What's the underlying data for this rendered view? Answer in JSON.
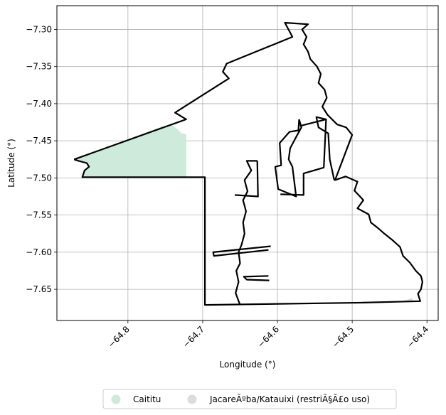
{
  "chart_data": {
    "type": "map",
    "xlabel": "Longitude (°)",
    "ylabel": "Latitude (°)",
    "xlim": [
      -64.895,
      -64.385
    ],
    "ylim": [
      -7.692,
      -7.268
    ],
    "x_ticks": [
      {
        "value": -64.8,
        "label": "−64.8"
      },
      {
        "value": -64.7,
        "label": "−64.7"
      },
      {
        "value": -64.6,
        "label": "−64.6"
      },
      {
        "value": -64.5,
        "label": "−64.5"
      },
      {
        "value": -64.4,
        "label": "−64.4"
      }
    ],
    "y_ticks": [
      {
        "value": -7.3,
        "label": "−7.30"
      },
      {
        "value": -7.35,
        "label": "−7.35"
      },
      {
        "value": -7.4,
        "label": "−7.40"
      },
      {
        "value": -7.45,
        "label": "−7.45"
      },
      {
        "value": -7.5,
        "label": "−7.50"
      },
      {
        "value": -7.55,
        "label": "−7.55"
      },
      {
        "value": -7.6,
        "label": "−7.60"
      },
      {
        "value": -7.65,
        "label": "−7.65"
      }
    ],
    "grid": true,
    "legend": {
      "placement": "bottom",
      "entries": [
        {
          "label": "Caititu",
          "color": "#cdeadb"
        },
        {
          "label": "JacareÃºba/Katauixi (restriÃ§Ã£o uso)",
          "color": "#dcdcdc"
        }
      ]
    },
    "areas": [
      {
        "name": "Caititu",
        "color": "#cdeadb",
        "coords": [
          [
            -64.872,
            -7.475
          ],
          [
            -64.755,
            -7.431
          ],
          [
            -64.742,
            -7.428
          ],
          [
            -64.734,
            -7.434
          ],
          [
            -64.728,
            -7.44
          ],
          [
            -64.722,
            -7.441
          ],
          [
            -64.722,
            -7.499
          ],
          [
            -64.861,
            -7.499
          ],
          [
            -64.858,
            -7.49
          ],
          [
            -64.852,
            -7.485
          ],
          [
            -64.855,
            -7.48
          ],
          [
            -64.866,
            -7.477
          ],
          [
            -64.872,
            -7.475
          ]
        ]
      },
      {
        "name": "JacareÃºba/Katauixi (restriÃ§Ã£o uso)",
        "color": "#dcdcdc",
        "coords": [
          [
            -64.43,
            -7.665
          ],
          [
            -64.42,
            -7.662
          ],
          [
            -64.418,
            -7.667
          ],
          [
            -64.432,
            -7.667
          ],
          [
            -64.43,
            -7.665
          ]
        ]
      }
    ],
    "boundary": [
      [
        -64.872,
        -7.475
      ],
      [
        -64.722,
        -7.421
      ],
      [
        -64.737,
        -7.412
      ],
      [
        -64.665,
        -7.366
      ],
      [
        -64.673,
        -7.357
      ],
      [
        -64.668,
        -7.346
      ],
      [
        -64.58,
        -7.31
      ],
      [
        -64.59,
        -7.291
      ],
      [
        -64.559,
        -7.293
      ],
      [
        -64.567,
        -7.3
      ],
      [
        -64.561,
        -7.31
      ],
      [
        -64.565,
        -7.32
      ],
      [
        -64.559,
        -7.33
      ],
      [
        -64.556,
        -7.34
      ],
      [
        -64.547,
        -7.35
      ],
      [
        -64.542,
        -7.36
      ],
      [
        -64.545,
        -7.372
      ],
      [
        -64.537,
        -7.381
      ],
      [
        -64.534,
        -7.392
      ],
      [
        -64.54,
        -7.404
      ],
      [
        -64.533,
        -7.415
      ],
      [
        -64.52,
        -7.428
      ],
      [
        -64.508,
        -7.432
      ],
      [
        -64.5,
        -7.442
      ],
      [
        -64.523,
        -7.503
      ],
      [
        -64.509,
        -7.498
      ],
      [
        -64.493,
        -7.505
      ],
      [
        -64.497,
        -7.517
      ],
      [
        -64.485,
        -7.53
      ],
      [
        -64.493,
        -7.541
      ],
      [
        -64.478,
        -7.549
      ],
      [
        -64.475,
        -7.56
      ],
      [
        -64.465,
        -7.568
      ],
      [
        -64.457,
        -7.575
      ],
      [
        -64.447,
        -7.583
      ],
      [
        -64.436,
        -7.593
      ],
      [
        -64.432,
        -7.605
      ],
      [
        -64.423,
        -7.614
      ],
      [
        -64.415,
        -7.625
      ],
      [
        -64.408,
        -7.632
      ],
      [
        -64.406,
        -7.64
      ],
      [
        -64.408,
        -7.65
      ],
      [
        -64.412,
        -7.656
      ],
      [
        -64.409,
        -7.666
      ],
      [
        -64.486,
        -7.668
      ],
      [
        -64.697,
        -7.671
      ],
      [
        -64.697,
        -7.499
      ],
      [
        -64.861,
        -7.499
      ],
      [
        -64.858,
        -7.49
      ],
      [
        -64.852,
        -7.485
      ],
      [
        -64.855,
        -7.48
      ],
      [
        -64.866,
        -7.477
      ],
      [
        -64.872,
        -7.475
      ]
    ],
    "inner_lines": [
      [
        [
          -64.571,
          -7.421
        ],
        [
          -64.572,
          -7.436
        ],
        [
          -64.584,
          -7.438
        ],
        [
          -64.597,
          -7.453
        ],
        [
          -64.595,
          -7.483
        ],
        [
          -64.603,
          -7.485
        ],
        [
          -64.599,
          -7.515
        ],
        [
          -64.575,
          -7.525
        ],
        [
          -64.58,
          -7.485
        ],
        [
          -64.585,
          -7.475
        ],
        [
          -64.583,
          -7.46
        ],
        [
          -64.575,
          -7.445
        ],
        [
          -64.568,
          -7.432
        ],
        [
          -64.571,
          -7.421
        ]
      ],
      [
        [
          -64.57,
          -7.43
        ],
        [
          -64.535,
          -7.421
        ],
        [
          -64.538,
          -7.486
        ],
        [
          -64.565,
          -7.494
        ],
        [
          -64.565,
          -7.523
        ],
        [
          -64.596,
          -7.522
        ]
      ],
      [
        [
          -64.535,
          -7.421
        ],
        [
          -64.548,
          -7.418
        ],
        [
          -64.545,
          -7.432
        ],
        [
          -64.532,
          -7.44
        ],
        [
          -64.53,
          -7.475
        ],
        [
          -64.524,
          -7.503
        ]
      ],
      [
        [
          -64.627,
          -7.477
        ],
        [
          -64.641,
          -7.477
        ],
        [
          -64.635,
          -7.49
        ],
        [
          -64.644,
          -7.503
        ],
        [
          -64.64,
          -7.518
        ],
        [
          -64.646,
          -7.53
        ],
        [
          -64.642,
          -7.545
        ],
        [
          -64.646,
          -7.56
        ],
        [
          -64.644,
          -7.575
        ],
        [
          -64.648,
          -7.59
        ],
        [
          -64.652,
          -7.6
        ],
        [
          -64.65,
          -7.615
        ],
        [
          -64.655,
          -7.625
        ],
        [
          -64.652,
          -7.64
        ],
        [
          -64.656,
          -7.655
        ],
        [
          -64.65,
          -7.671
        ]
      ],
      [
        [
          -64.627,
          -7.477
        ],
        [
          -64.626,
          -7.525
        ],
        [
          -64.657,
          -7.523
        ]
      ],
      [
        [
          -64.609,
          -7.592
        ],
        [
          -64.686,
          -7.6
        ],
        [
          -64.685,
          -7.605
        ],
        [
          -64.612,
          -7.597
        ]
      ],
      [
        [
          -64.612,
          -7.632
        ],
        [
          -64.645,
          -7.633
        ],
        [
          -64.641,
          -7.637
        ],
        [
          -64.611,
          -7.638
        ]
      ]
    ]
  }
}
